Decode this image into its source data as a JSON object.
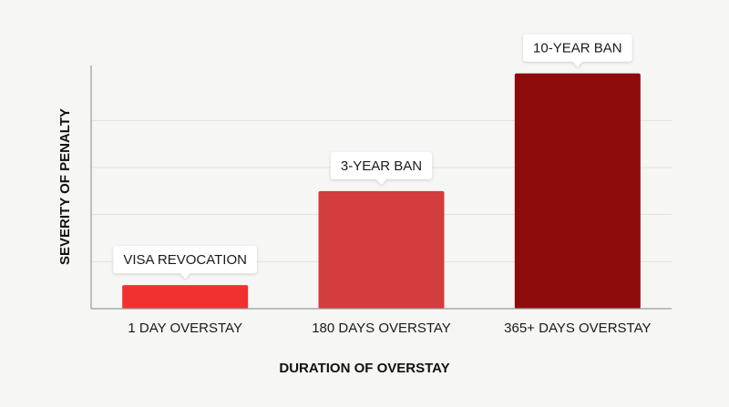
{
  "chart_data": {
    "type": "bar",
    "categories": [
      "1 DAY OVERSTAY",
      "180 DAYS OVERSTAY",
      "365+ DAYS OVERSTAY"
    ],
    "values": [
      1,
      5,
      10
    ],
    "data_labels": [
      "VISA REVOCATION",
      "3-YEAR BAN",
      "10-YEAR BAN"
    ],
    "colors": [
      "#f0312f",
      "#d43d3d",
      "#8e0b0b"
    ],
    "title": "",
    "xlabel": "DURATION OF OVERSTAY",
    "ylabel": "SEVERITY OF PENALTY",
    "ylim": [
      0,
      10.8
    ],
    "grid": true,
    "y_tick_labels": false
  }
}
